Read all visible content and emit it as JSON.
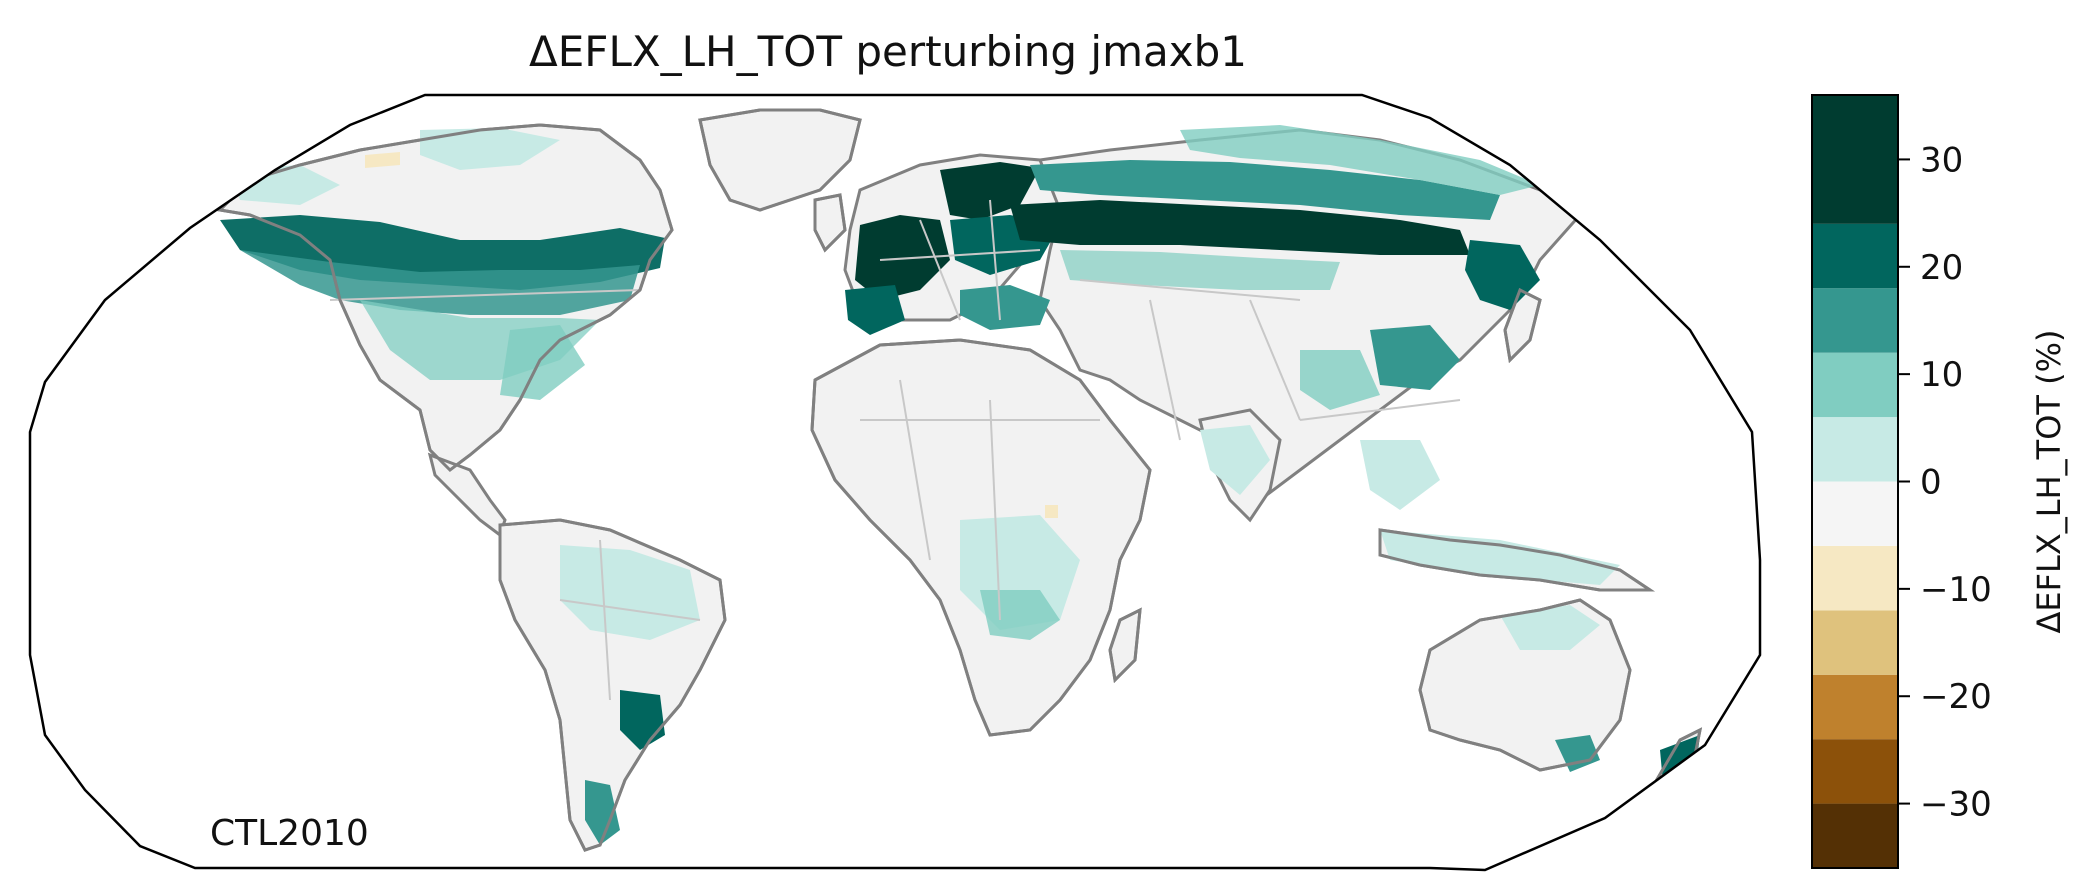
{
  "title": "ΔEFLX_LH_TOT perturbing jmaxb1",
  "run_label": "CTL2010",
  "colorbar": {
    "label": "ΔEFLX_LH_TOT (%)",
    "range": [
      -36,
      36
    ],
    "bins": [
      {
        "min": -36,
        "max": -30,
        "color": "#543005"
      },
      {
        "min": -30,
        "max": -24,
        "color": "#8c510a"
      },
      {
        "min": -24,
        "max": -18,
        "color": "#bf812d"
      },
      {
        "min": -18,
        "max": -12,
        "color": "#dfc27d"
      },
      {
        "min": -12,
        "max": -6,
        "color": "#f6e8c3"
      },
      {
        "min": -6,
        "max": 0,
        "color": "#f5f5f5"
      },
      {
        "min": 0,
        "max": 6,
        "color": "#c7eae5"
      },
      {
        "min": 6,
        "max": 12,
        "color": "#80cdc1"
      },
      {
        "min": 12,
        "max": 18,
        "color": "#35978f"
      },
      {
        "min": 18,
        "max": 24,
        "color": "#01665e"
      },
      {
        "min": 24,
        "max": 36,
        "color": "#003c30"
      }
    ],
    "ticks": [
      {
        "value": 30,
        "label": "30"
      },
      {
        "value": 20,
        "label": "20"
      },
      {
        "value": 10,
        "label": "10"
      },
      {
        "value": 0,
        "label": "0"
      },
      {
        "value": -10,
        "label": "−10"
      },
      {
        "value": -20,
        "label": "−20"
      },
      {
        "value": -30,
        "label": "−30"
      }
    ]
  },
  "map": {
    "projection": "Robinson",
    "coastline_color": "#808080",
    "border_color": "#c8c8c8",
    "land_fill": "#f2f2f2"
  }
}
